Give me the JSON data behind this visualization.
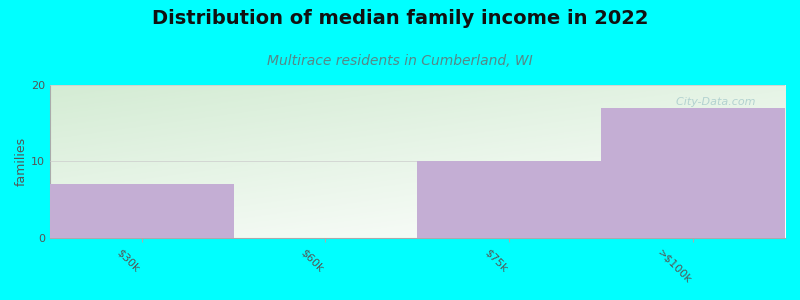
{
  "title": "Distribution of median family income in 2022",
  "subtitle": "Multirace residents in Cumberland, WI",
  "categories": [
    "$30k",
    "$60k",
    "$75k",
    ">$100k"
  ],
  "values": [
    7,
    0,
    10,
    17
  ],
  "bar_color": "#c4aed4",
  "ylabel": "families",
  "ylim": [
    0,
    20
  ],
  "yticks": [
    0,
    10,
    20
  ],
  "background_color": "#00ffff",
  "plot_bg_top_left": "#d4ecd4",
  "plot_bg_bottom_right": "#f8fff8",
  "plot_bg_white": "#ffffff",
  "title_fontsize": 14,
  "title_color": "#111111",
  "subtitle_fontsize": 10,
  "subtitle_color": "#558888",
  "tick_label_color": "#555555",
  "tick_label_fontsize": 8,
  "grid_color": "#cccccc",
  "spine_color": "#aaaaaa",
  "watermark": "  City-Data.com",
  "watermark_color": "#aacccc",
  "ylabel_fontsize": 9,
  "ylabel_color": "#555555"
}
